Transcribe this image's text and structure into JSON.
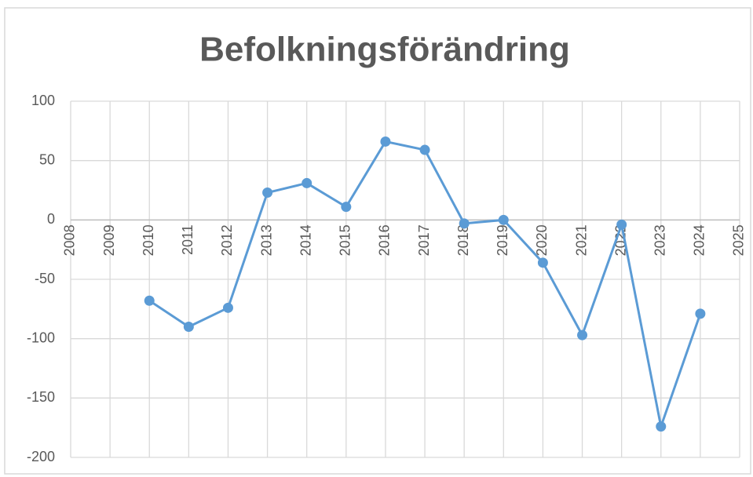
{
  "chart_data": {
    "type": "line",
    "title": "Befolkningsförändring",
    "x": [
      2010,
      2011,
      2012,
      2013,
      2014,
      2015,
      2016,
      2017,
      2018,
      2019,
      2020,
      2021,
      2022,
      2023,
      2024
    ],
    "values": [
      -68,
      -90,
      -74,
      23,
      31,
      11,
      66,
      59,
      -3,
      0,
      -36,
      -97,
      -4,
      -174,
      -79
    ],
    "color": "#5b9bd5",
    "xlim": [
      2008,
      2025
    ],
    "xticks": [
      2008,
      2009,
      2010,
      2011,
      2012,
      2013,
      2014,
      2015,
      2016,
      2017,
      2018,
      2019,
      2020,
      2021,
      2022,
      2023,
      2024,
      2025
    ],
    "ylim": [
      -200,
      100
    ],
    "yticks": [
      -200,
      -150,
      -100,
      -50,
      0,
      50,
      100
    ],
    "grid": true
  }
}
